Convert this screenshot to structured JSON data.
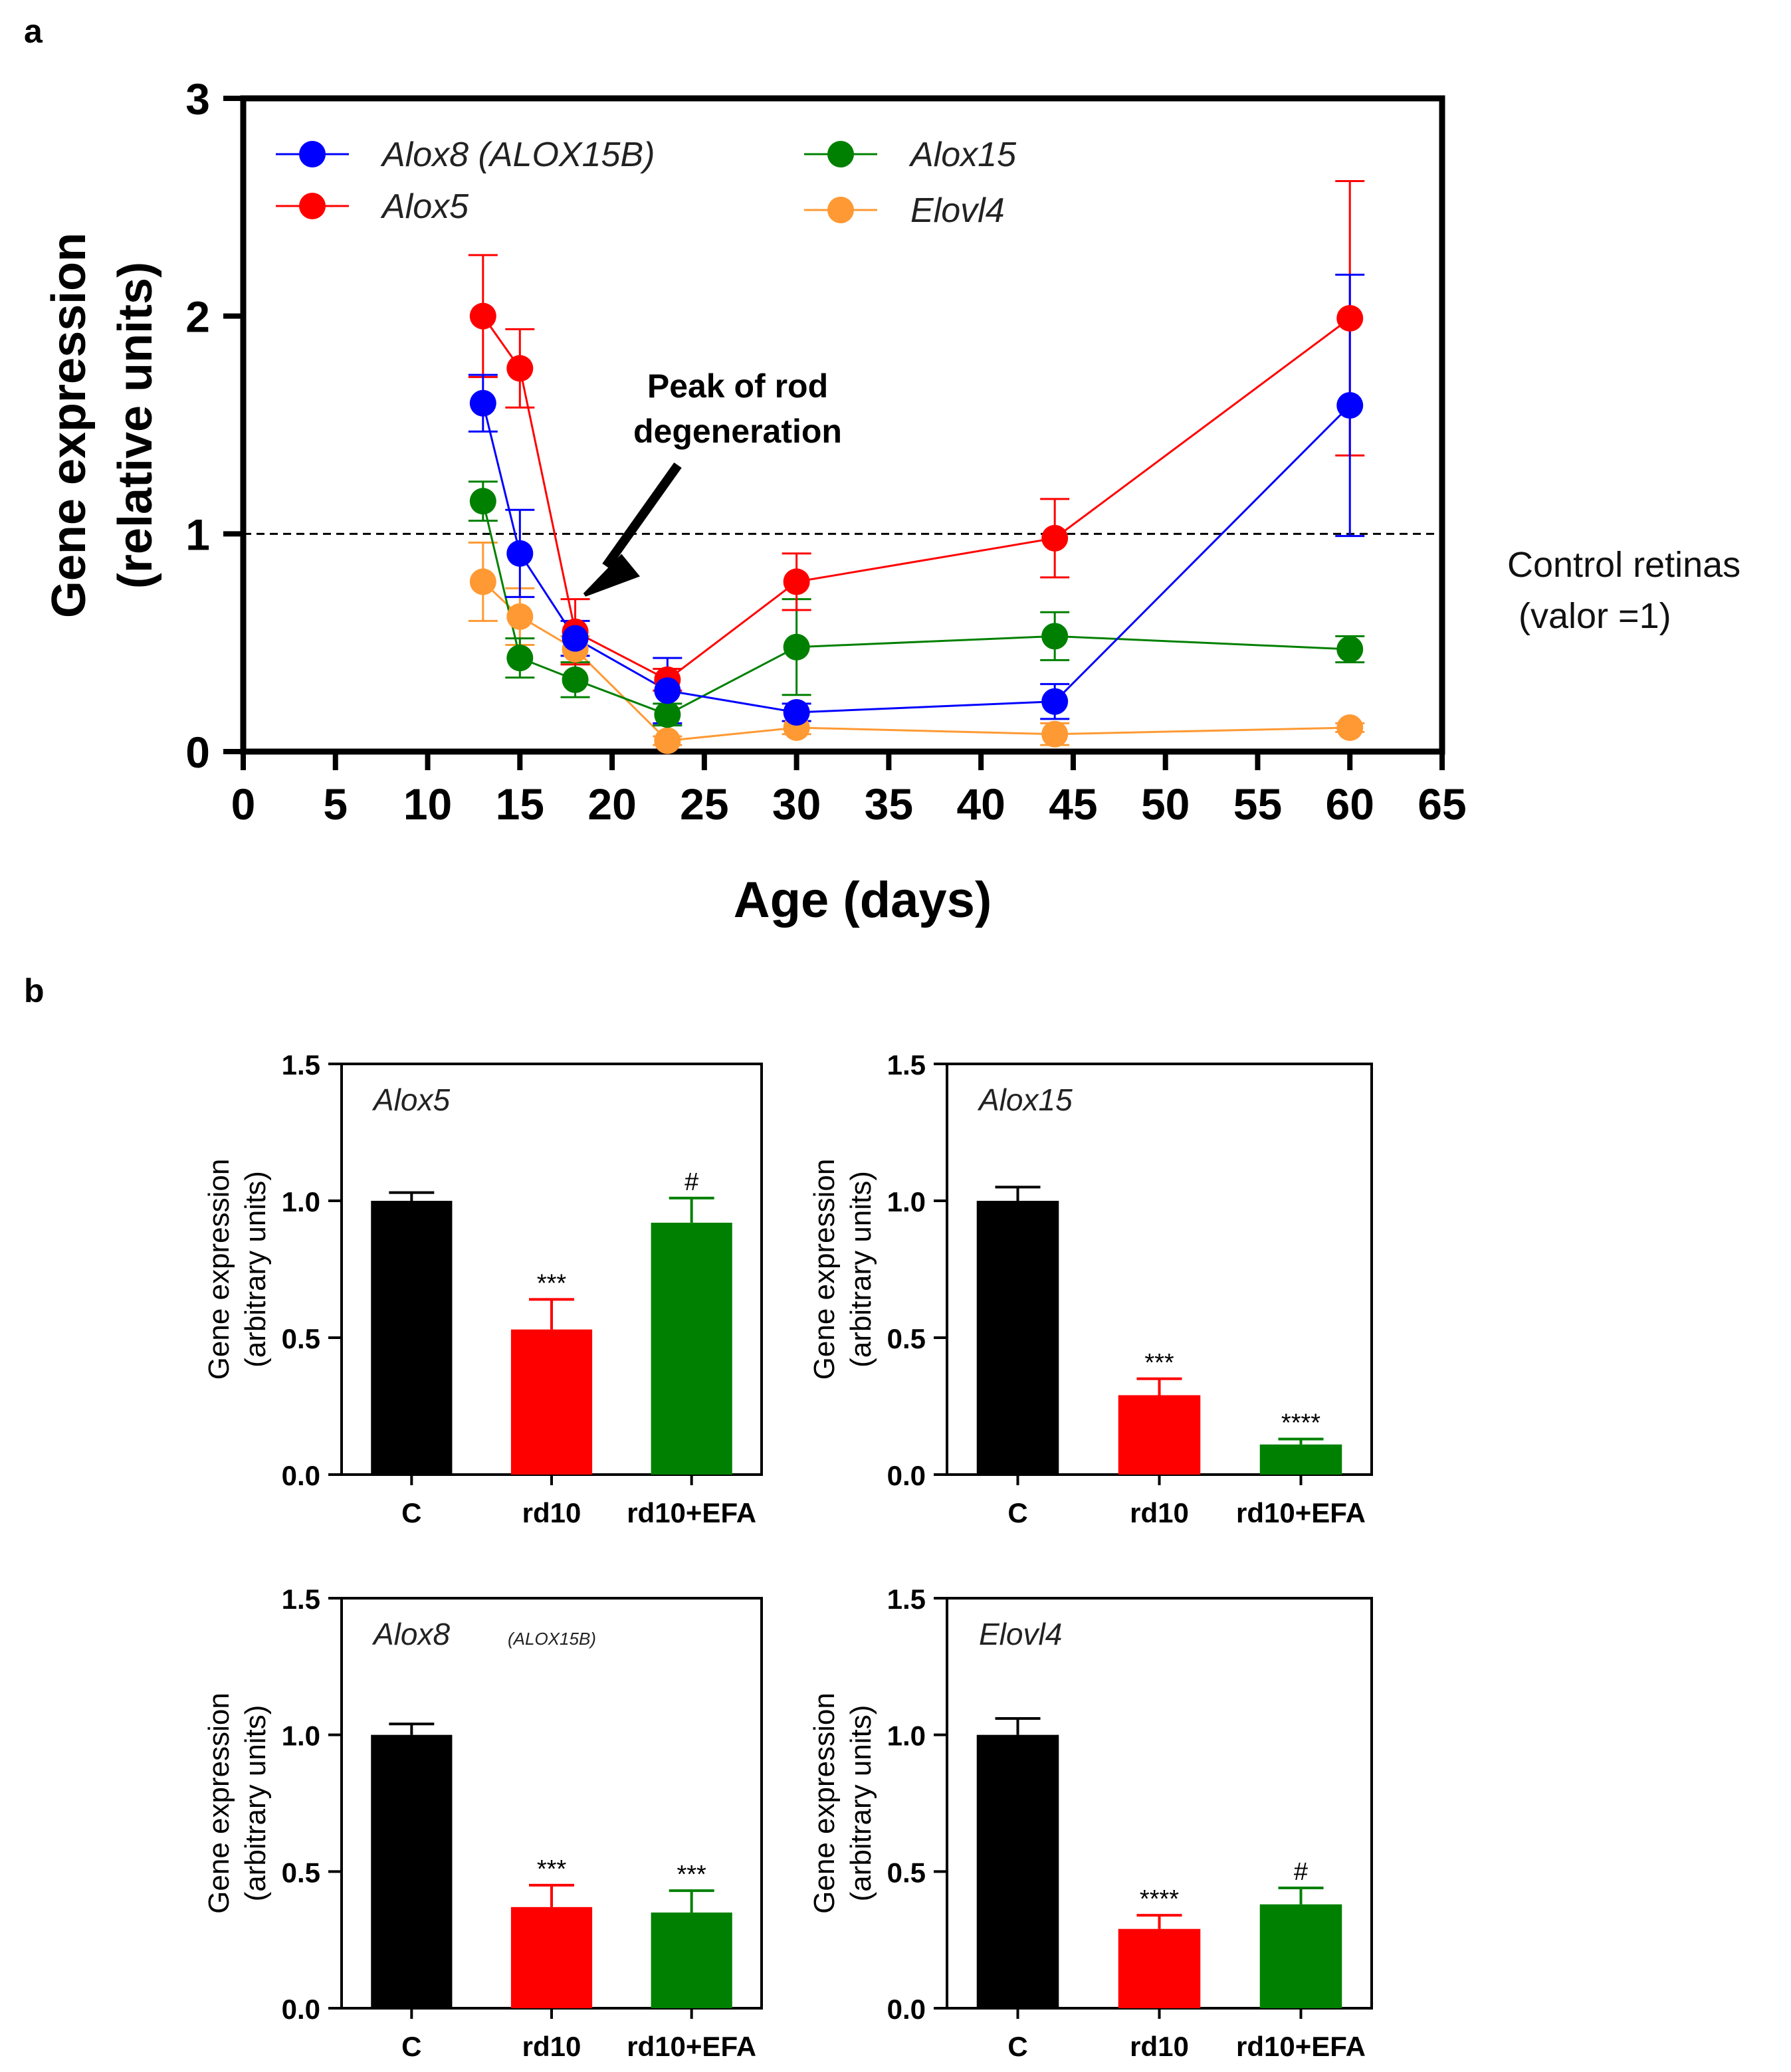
{
  "panel_labels": {
    "a": "a",
    "b": "b"
  },
  "colors": {
    "blue": "#0000ff",
    "red": "#ff0000",
    "green": "#008000",
    "orange": "#ff9933",
    "black": "#000000",
    "axis": "#000000"
  },
  "chart_data": [
    {
      "id": "panel-a",
      "type": "line",
      "xlabel": "Age (days)",
      "ylabel": [
        "Gene expression",
        "(relative units)"
      ],
      "xlim": [
        0,
        65
      ],
      "ylim": [
        0,
        3
      ],
      "xticks": [
        "0",
        "5",
        "10",
        "15",
        "20",
        "25",
        "30",
        "35",
        "40",
        "45",
        "50",
        "55",
        "60",
        "65"
      ],
      "yticks": [
        "0",
        "1",
        "2",
        "3"
      ],
      "x": [
        13,
        15,
        18,
        23,
        30,
        44,
        60
      ],
      "series": [
        {
          "name": "Alox8 (ALOX15B)",
          "color": "#0000ff",
          "values": [
            1.6,
            0.91,
            0.52,
            0.28,
            0.18,
            0.23,
            1.59
          ],
          "errors": [
            0.13,
            0.2,
            0.08,
            0.15,
            0.04,
            0.08,
            0.6
          ]
        },
        {
          "name": "Alox5",
          "color": "#ff0000",
          "values": [
            2.0,
            1.76,
            0.55,
            0.33,
            0.78,
            0.98,
            1.99
          ],
          "errors": [
            0.28,
            0.18,
            0.15,
            0.05,
            0.13,
            0.18,
            0.63
          ]
        },
        {
          "name": "Alox15",
          "color": "#008000",
          "values": [
            1.15,
            0.43,
            0.33,
            0.17,
            0.48,
            0.53,
            0.47
          ],
          "errors": [
            0.09,
            0.09,
            0.08,
            0.05,
            0.22,
            0.11,
            0.06
          ]
        },
        {
          "name": "Elovl4",
          "color": "#ff9933",
          "values": [
            0.78,
            0.62,
            0.47,
            0.05,
            0.11,
            0.08,
            0.11
          ],
          "errors": [
            0.18,
            0.13,
            0.06,
            0.02,
            0.03,
            0.05,
            0.02
          ]
        }
      ],
      "legend": [
        {
          "name": "Alox8 (ALOX15B)",
          "color": "#0000ff"
        },
        {
          "name": "Alox5",
          "color": "#ff0000"
        },
        {
          "name": "Alox15",
          "color": "#008000"
        },
        {
          "name": "Elovl4",
          "color": "#ff9933"
        }
      ],
      "reference_line": {
        "y": 1,
        "label": [
          "Control retinas",
          "(valor =1)"
        ]
      },
      "annotation": {
        "text": [
          "Peak of rod",
          "degeneration"
        ],
        "x": 18
      }
    },
    {
      "id": "panel-b-alox5",
      "type": "bar",
      "title": "Alox5",
      "categories": [
        "C",
        "rd10",
        "rd10+EFA"
      ],
      "values": [
        1.0,
        0.53,
        0.92
      ],
      "errors": [
        0.03,
        0.11,
        0.09
      ],
      "colors": [
        "#000000",
        "#ff0000",
        "#008000"
      ],
      "sig": [
        "",
        "***",
        "#"
      ],
      "ylabel": [
        "Gene expression",
        "(arbitrary units)"
      ],
      "ylim": [
        0,
        1.5
      ],
      "yticks": [
        "0.0",
        "0.5",
        "1.0",
        "1.5"
      ]
    },
    {
      "id": "panel-b-alox15",
      "type": "bar",
      "title": "Alox15",
      "categories": [
        "C",
        "rd10",
        "rd10+EFA"
      ],
      "values": [
        1.0,
        0.29,
        0.11
      ],
      "errors": [
        0.05,
        0.06,
        0.02
      ],
      "colors": [
        "#000000",
        "#ff0000",
        "#008000"
      ],
      "sig": [
        "",
        "***",
        "****"
      ],
      "ylabel": [
        "Gene expression",
        "(arbitrary units)"
      ],
      "ylim": [
        0,
        1.5
      ],
      "yticks": [
        "0.0",
        "0.5",
        "1.0",
        "1.5"
      ]
    },
    {
      "id": "panel-b-alox8",
      "type": "bar",
      "title": "Alox8",
      "title_sub": "(ALOX15B)",
      "categories": [
        "C",
        "rd10",
        "rd10+EFA"
      ],
      "values": [
        1.0,
        0.37,
        0.35
      ],
      "errors": [
        0.04,
        0.08,
        0.08
      ],
      "colors": [
        "#000000",
        "#ff0000",
        "#008000"
      ],
      "sig": [
        "",
        "***",
        "***"
      ],
      "ylabel": [
        "Gene expression",
        "(arbitrary units)"
      ],
      "ylim": [
        0,
        1.5
      ],
      "yticks": [
        "0.0",
        "0.5",
        "1.0",
        "1.5"
      ]
    },
    {
      "id": "panel-b-elovl4",
      "type": "bar",
      "title": "Elovl4",
      "categories": [
        "C",
        "rd10",
        "rd10+EFA"
      ],
      "values": [
        1.0,
        0.29,
        0.38
      ],
      "errors": [
        0.06,
        0.05,
        0.06
      ],
      "colors": [
        "#000000",
        "#ff0000",
        "#008000"
      ],
      "sig": [
        "",
        "****",
        "#"
      ],
      "ylabel": [
        "Gene expression",
        "(arbitrary units)"
      ],
      "ylim": [
        0,
        1.5
      ],
      "yticks": [
        "0.0",
        "0.5",
        "1.0",
        "1.5"
      ]
    }
  ]
}
